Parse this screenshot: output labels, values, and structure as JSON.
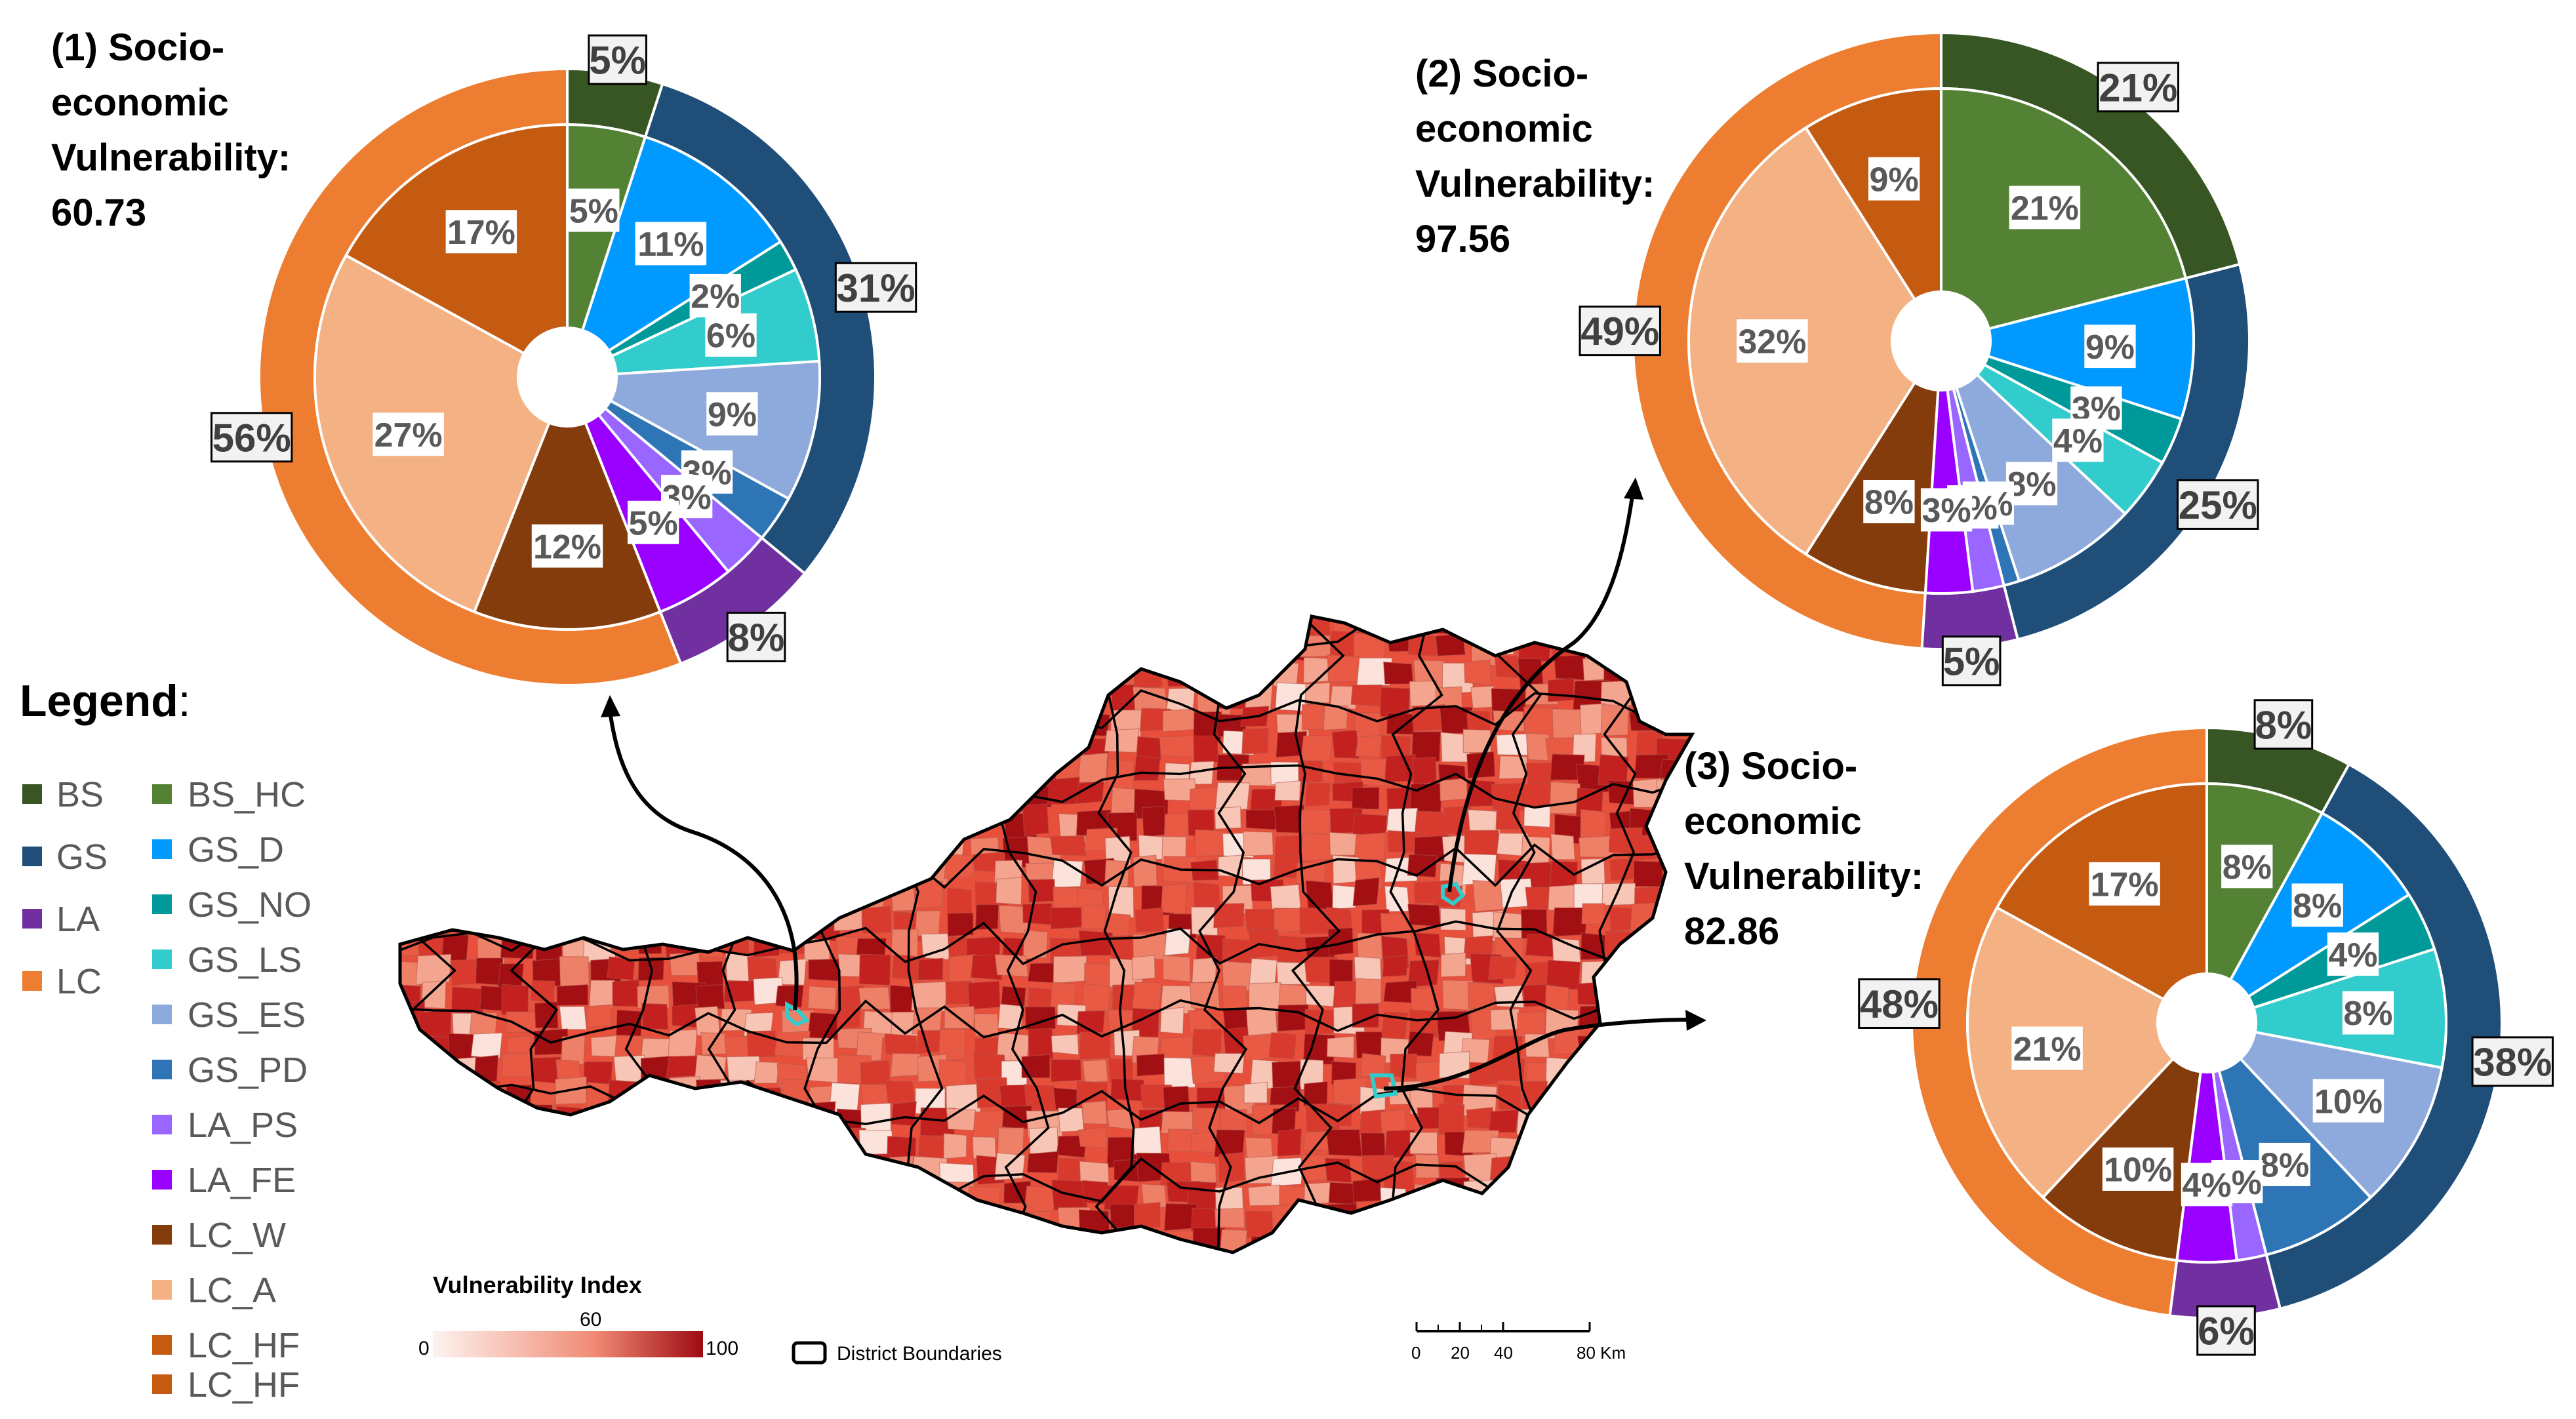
{
  "legend": {
    "title": "Legend",
    "colon": ":",
    "groups": [
      {
        "code": "BS",
        "color": "#375623"
      },
      {
        "code": "GS",
        "color": "#1F4E79"
      },
      {
        "code": "LA",
        "color": "#7030A0"
      },
      {
        "code": "LC",
        "color": "#ED7D31"
      }
    ],
    "subcategories": [
      {
        "code": "BS_HC",
        "color": "#548235"
      },
      {
        "code": "GS_D",
        "color": "#0099FF"
      },
      {
        "code": "GS_NO",
        "color": "#009999"
      },
      {
        "code": "GS_LS",
        "color": "#33CCCC"
      },
      {
        "code": "GS_ES",
        "color": "#8EA9DB"
      },
      {
        "code": "GS_PD",
        "color": "#2E75B6"
      },
      {
        "code": "LA_PS",
        "color": "#9966FF"
      },
      {
        "code": "LA_FE",
        "color": "#9900FF"
      },
      {
        "code": "LC_W",
        "color": "#843C0C"
      },
      {
        "code": "LC_A",
        "color": "#F4B183"
      },
      {
        "code": "LC_HF",
        "color": "#C55A11"
      }
    ],
    "duplicate_label": "LC_HF"
  },
  "map": {
    "colorbar_title": "Vulnerability Index",
    "colorbar_min": "0",
    "colorbar_mid": "60",
    "colorbar_max": "100",
    "district_boundaries_label": "District Boundaries",
    "scale_ticks": [
      "0",
      "20",
      "40",
      "80 Km"
    ],
    "colors": {
      "low": "#FDF3EF",
      "mid": "#F08A74",
      "high": "#9E0B12",
      "highlight": "#33CCCC"
    }
  },
  "chart_data": [
    {
      "type": "pie",
      "title": "(1) Socio-economic Vulnerability: 60.73",
      "title_lines": [
        "(1) Socio-",
        "economic",
        "Vulnerability:",
        "60.73"
      ],
      "outer": {
        "categories": [
          "BS",
          "GS",
          "LA",
          "LC"
        ],
        "values": [
          5,
          31,
          8,
          56
        ],
        "labels": [
          "5%",
          "31%",
          "8%",
          "56%"
        ]
      },
      "inner": {
        "categories": [
          "BS_HC",
          "GS_D",
          "GS_NO",
          "GS_LS",
          "GS_ES",
          "GS_PD",
          "LA_PS",
          "LA_FE",
          "LC_W",
          "LC_A",
          "LC_HF"
        ],
        "values": [
          5,
          11,
          2,
          6,
          9,
          3,
          3,
          5,
          12,
          27,
          17
        ],
        "labels": [
          "5%",
          "11%",
          "2%",
          "6%",
          "9%",
          "3%",
          "3%",
          "5%",
          "12%",
          "27%",
          "17%"
        ]
      }
    },
    {
      "type": "pie",
      "title": "(2) Socio-economic Vulnerability: 97.56",
      "title_lines": [
        "(2) Socio-",
        "economic",
        "Vulnerability:",
        "97.56"
      ],
      "outer": {
        "categories": [
          "BS",
          "GS",
          "LA",
          "LC"
        ],
        "values": [
          21,
          25,
          5,
          49
        ],
        "labels": [
          "21%",
          "25%",
          "5%",
          "49%"
        ]
      },
      "inner": {
        "categories": [
          "BS_HC",
          "GS_D",
          "GS_NO",
          "GS_LS",
          "GS_ES",
          "GS_PD",
          "LA_PS",
          "LA_FE",
          "LC_W",
          "LC_A",
          "LC_HF"
        ],
        "values": [
          21,
          9,
          3,
          4,
          8,
          1,
          2,
          3,
          8,
          32,
          9
        ],
        "labels": [
          "21%",
          "9%",
          "3%",
          "4%",
          "8%",
          "1%",
          "2%",
          "3%",
          "8%",
          "32%",
          "9%"
        ]
      }
    },
    {
      "type": "pie",
      "title": "(3) Socio-economic Vulnerability: 82.86",
      "title_lines": [
        "(3) Socio-",
        "economic",
        "Vulnerability:",
        "82.86"
      ],
      "outer": {
        "categories": [
          "BS",
          "GS",
          "LA",
          "LC"
        ],
        "values": [
          8,
          38,
          6,
          48
        ],
        "labels": [
          "8%",
          "38%",
          "6%",
          "48%"
        ]
      },
      "inner": {
        "categories": [
          "BS_HC",
          "GS_D",
          "GS_NO",
          "GS_LS",
          "GS_ES",
          "GS_PD",
          "LA_PS",
          "LA_FE",
          "LC_W",
          "LC_A",
          "LC_HF"
        ],
        "values": [
          8,
          8,
          4,
          8,
          10,
          8,
          2,
          4,
          10,
          21,
          17
        ],
        "labels": [
          "8%",
          "8%",
          "4%",
          "8%",
          "10%",
          "8%",
          "2%",
          "4%",
          "10%",
          "21%",
          "17%"
        ]
      }
    }
  ]
}
